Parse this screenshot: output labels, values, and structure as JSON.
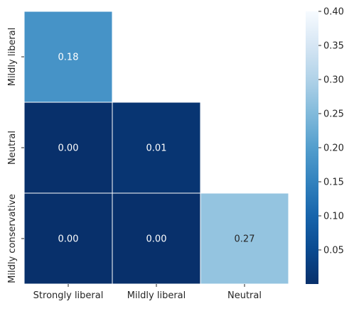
{
  "chart_data": {
    "type": "heatmap",
    "title": "",
    "xlabel": "",
    "ylabel": "",
    "x_categories": [
      "Strongly liberal",
      "Mildly liberal",
      "Neutral"
    ],
    "y_categories": [
      "Mildly liberal",
      "Neutral",
      "Mildly conservative"
    ],
    "values": [
      [
        0.18,
        null,
        null
      ],
      [
        0.0,
        0.01,
        null
      ],
      [
        0.0,
        0.0,
        0.27
      ]
    ],
    "cell_labels": [
      [
        "0.18",
        "",
        ""
      ],
      [
        "0.00",
        "0.01",
        ""
      ],
      [
        "0.00",
        "0.00",
        "0.27"
      ]
    ],
    "mask": "upper triangle",
    "colormap": "Blues_r",
    "colorbar": {
      "min": 0.0,
      "max": 0.4,
      "ticks": [
        0.05,
        0.1,
        0.15,
        0.2,
        0.25,
        0.3,
        0.35,
        0.4
      ],
      "tick_labels": [
        "0.05",
        "0.10",
        "0.15",
        "0.20",
        "0.25",
        "0.30",
        "0.35",
        "0.40"
      ],
      "placement": "right"
    },
    "grid": false
  }
}
